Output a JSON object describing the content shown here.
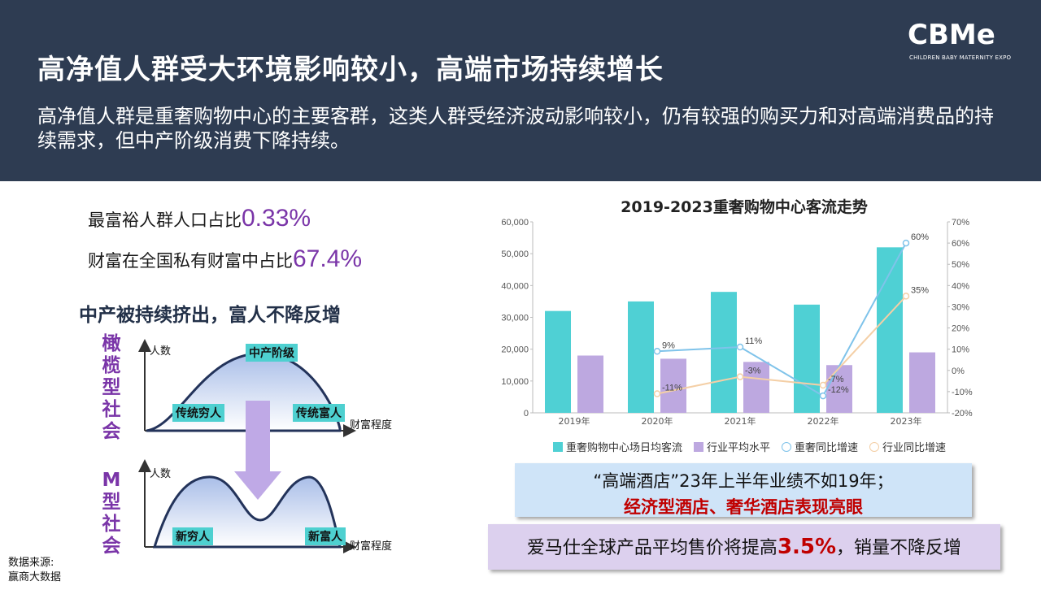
{
  "header": {
    "title": "高净值人群受大环境影响较小，高端市场持续增长",
    "subtitle": "高净值人群是重奢购物中心的主要客群，这类人群受经济波动影响较小，仍有较强的购买力和对高端消费品的持续需求，但中产阶级消费下降持续。",
    "logo_text": "CBMe",
    "logo_tagline": "CHILDREN BABY MATERNITY EXPO"
  },
  "left": {
    "stat1_label": "最富裕人群人口占比",
    "stat1_value": "0.33%",
    "stat2_label": "财富在全国私有财富中占比",
    "stat2_value": "67.4%",
    "heading": "中产被持续挤出，富人不降反增",
    "olive": {
      "label_chars": [
        "橄",
        "榄",
        "型",
        "社",
        "会"
      ],
      "y_axis": "人数",
      "x_axis": "财富程度",
      "peak_tag": "中产阶级",
      "left_tag": "传统穷人",
      "right_tag": "传统富人"
    },
    "m": {
      "label_chars": [
        "M",
        "型",
        "社",
        "会"
      ],
      "y_axis": "人数",
      "x_axis": "财富程度",
      "left_tag": "新穷人",
      "right_tag": "新富人"
    },
    "source_label": "数据来源:",
    "source_value": "赢商大数据"
  },
  "chart_data": {
    "type": "bar",
    "title": "2019-2023重奢购物中心客流走势",
    "categories": [
      "2019年",
      "2020年",
      "2021年",
      "2022年",
      "2023年"
    ],
    "y_left": {
      "lim": [
        0,
        60000
      ],
      "ticks": [
        "0",
        "10,000",
        "20,000",
        "30,000",
        "40,000",
        "50,000",
        "60,000"
      ]
    },
    "y_right": {
      "lim": [
        -20,
        70
      ],
      "ticks": [
        "-20%",
        "-10%",
        "0%",
        "10%",
        "20%",
        "30%",
        "40%",
        "50%",
        "60%",
        "70%"
      ]
    },
    "series": [
      {
        "name": "重奢购物中心场日均客流",
        "kind": "bar",
        "axis": "left",
        "color": "#4fd0d4",
        "values": [
          32000,
          35000,
          38000,
          34000,
          52000
        ]
      },
      {
        "name": "行业平均水平",
        "kind": "bar",
        "axis": "left",
        "color": "#bda8e0",
        "values": [
          18000,
          17000,
          16000,
          15000,
          19000
        ]
      },
      {
        "name": "重奢同比增速",
        "kind": "line",
        "axis": "right",
        "color": "#7fc3ea",
        "values": [
          null,
          9,
          11,
          -12,
          60
        ],
        "labels": [
          null,
          "9%",
          "11%",
          "-12%",
          "60%"
        ]
      },
      {
        "name": "行业同比增速",
        "kind": "line",
        "axis": "right",
        "color": "#f4cfa6",
        "values": [
          null,
          -11,
          -3,
          -7,
          35
        ],
        "labels": [
          null,
          "-11%",
          "-3%",
          "-7%",
          "35%"
        ]
      }
    ],
    "legend_position": "bottom",
    "grid": false
  },
  "callouts": {
    "box1_line1": "“高端酒店”23年上半年业绩不如19年；",
    "box1_line2": "经济型酒店、奢华酒店表现亮眼",
    "box2_prefix": "爱马仕全球产品平均售价将提高",
    "box2_highlight": "3.5%",
    "box2_suffix": "，销量不降反增"
  },
  "colors": {
    "header_bg": "#2e3c52",
    "accent_purple": "#7a35a8",
    "highlight_red": "#c00000",
    "teal": "#4fd0d4",
    "lavender": "#bda8e0"
  }
}
